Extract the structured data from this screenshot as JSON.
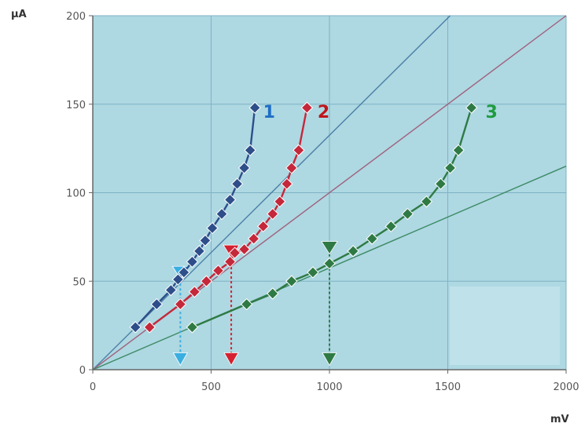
{
  "chart_data": {
    "type": "scatter",
    "title": "",
    "xlabel": "mV",
    "ylabel": "μA",
    "xlim": [
      0,
      2000
    ],
    "ylim": [
      0,
      200
    ],
    "x_ticks": [
      0,
      500,
      1000,
      1500,
      2000
    ],
    "y_ticks": [
      0,
      50,
      100,
      150,
      200
    ],
    "x_tick_labels": [
      "0",
      "500",
      "1000",
      "1500",
      "2000"
    ],
    "y_tick_labels": [
      "0",
      "50",
      "100",
      "150",
      "200"
    ],
    "grid": true,
    "series": [
      {
        "name": "1",
        "color": "#2e4e8a",
        "label_color": "#1f6fc4",
        "label_at": [
          745,
          146
        ],
        "points": [
          [
            180,
            24
          ],
          [
            270,
            37
          ],
          [
            330,
            45
          ],
          [
            360,
            51
          ],
          [
            385,
            55
          ],
          [
            420,
            61
          ],
          [
            450,
            67
          ],
          [
            475,
            73
          ],
          [
            505,
            80
          ],
          [
            545,
            88
          ],
          [
            580,
            96
          ],
          [
            610,
            105
          ],
          [
            640,
            114
          ],
          [
            665,
            124
          ],
          [
            685,
            148
          ]
        ]
      },
      {
        "name": "2",
        "color": "#c4283a",
        "label_color": "#c0161c",
        "label_at": [
          975,
          146
        ],
        "points": [
          [
            240,
            24
          ],
          [
            370,
            37
          ],
          [
            430,
            44
          ],
          [
            480,
            50
          ],
          [
            530,
            56
          ],
          [
            580,
            61
          ],
          [
            600,
            66
          ],
          [
            640,
            68
          ],
          [
            680,
            74
          ],
          [
            720,
            81
          ],
          [
            760,
            88
          ],
          [
            790,
            95
          ],
          [
            820,
            105
          ],
          [
            840,
            114
          ],
          [
            870,
            124
          ],
          [
            905,
            148
          ]
        ]
      },
      {
        "name": "3",
        "color": "#2f7a44",
        "label_color": "#1e9c40",
        "label_at": [
          1685,
          146
        ],
        "points": [
          [
            420,
            24
          ],
          [
            650,
            37
          ],
          [
            760,
            43
          ],
          [
            840,
            50
          ],
          [
            930,
            55
          ],
          [
            1000,
            60
          ],
          [
            1100,
            67
          ],
          [
            1180,
            74
          ],
          [
            1260,
            81
          ],
          [
            1330,
            88
          ],
          [
            1410,
            95
          ],
          [
            1470,
            105
          ],
          [
            1510,
            114
          ],
          [
            1545,
            124
          ],
          [
            1600,
            148
          ]
        ]
      }
    ],
    "reference_lines": [
      {
        "color": "#4a7fa5",
        "from": [
          0,
          0
        ],
        "to": [
          1510,
          200
        ]
      },
      {
        "color": "#a0607c",
        "from": [
          0,
          0
        ],
        "to": [
          2000,
          200
        ]
      },
      {
        "color": "#3c8a64",
        "from": [
          0,
          0
        ],
        "to": [
          2000,
          115
        ]
      }
    ],
    "markers": [
      {
        "series": "1",
        "color": "#3aaee0",
        "x": 370,
        "y_top": 54,
        "y_bottom": 6
      },
      {
        "series": "2",
        "color": "#d42030",
        "x": 585,
        "y_top": 66,
        "y_bottom": 6
      },
      {
        "series": "3",
        "color": "#2f7a44",
        "x": 1000,
        "y_top": 68,
        "y_bottom": 6
      }
    ],
    "colors": {
      "plot_background": "#aed8e2",
      "grid": "#7fb3c3",
      "axis": "#666666",
      "inset_box": "#bfe1ea"
    }
  }
}
